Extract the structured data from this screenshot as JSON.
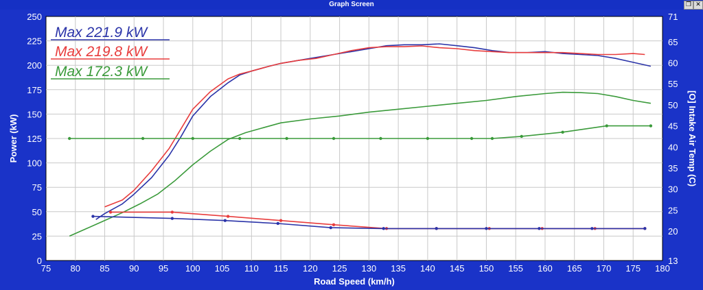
{
  "window": {
    "title": "Graph Screen",
    "restore_glyph": "❐",
    "close_glyph": "✕"
  },
  "colors": {
    "frame": "#1a33c8",
    "plot_bg": "#ffffff",
    "grid": "#c8c8c8",
    "axis_text": "#ffffff",
    "blue": "#2a33a8",
    "red": "#e83c3c",
    "green": "#3a9a3a"
  },
  "chart_data": {
    "type": "line",
    "xlabel": "Road Speed (km/h)",
    "ylabel": "Power (kW)",
    "y2label": "[O] Intake Air Temp (C)",
    "xlim": [
      75,
      180
    ],
    "ylim": [
      0,
      250
    ],
    "y2lim": [
      13,
      71
    ],
    "xticks": [
      75,
      80,
      85,
      90,
      95,
      100,
      105,
      110,
      115,
      120,
      125,
      130,
      135,
      140,
      145,
      150,
      155,
      160,
      165,
      170,
      175,
      180
    ],
    "yticks": [
      0,
      25,
      50,
      75,
      100,
      125,
      150,
      175,
      200,
      225,
      250
    ],
    "y2ticks": [
      13,
      20,
      25,
      30,
      35,
      40,
      45,
      50,
      55,
      60,
      65,
      71
    ],
    "grid": true,
    "legend": [
      "Max 221.9 kW",
      "Max 219.8 kW",
      "Max 172.3 kW"
    ],
    "series": [
      {
        "color": "blue",
        "axis": "power",
        "markers": false,
        "x": [
          83.5,
          85,
          88,
          90,
          93,
          96,
          98,
          100,
          103,
          106,
          108,
          110,
          113,
          115,
          118,
          121,
          124,
          127,
          130,
          133,
          136,
          139,
          142,
          145,
          148,
          151,
          154,
          157,
          160,
          163,
          166,
          169,
          172,
          175,
          178
        ],
        "y": [
          42,
          48,
          58,
          68,
          85,
          108,
          127,
          148,
          168,
          182,
          190,
          194,
          199,
          202,
          205,
          208,
          211,
          214,
          217,
          220,
          221,
          221,
          221.9,
          220,
          218,
          215,
          213,
          213,
          214,
          212,
          211,
          210,
          207,
          203,
          199
        ]
      },
      {
        "color": "red",
        "axis": "power",
        "markers": false,
        "x": [
          85,
          88,
          90,
          93,
          96,
          98,
          100,
          103,
          106,
          108,
          110,
          113,
          115,
          118,
          121,
          124,
          127,
          130,
          133,
          136,
          139,
          142,
          145,
          148,
          151,
          154,
          157,
          160,
          163,
          166,
          169,
          172,
          175,
          177
        ],
        "y": [
          55,
          62,
          72,
          92,
          115,
          135,
          155,
          173,
          186,
          191,
          194,
          199,
          202,
          205,
          207,
          211,
          215,
          218,
          219,
          219,
          219.8,
          218,
          217,
          215,
          214,
          213,
          213,
          213,
          213,
          212,
          211,
          211,
          212,
          211
        ]
      },
      {
        "color": "green",
        "axis": "power",
        "markers": false,
        "x": [
          79,
          82,
          85,
          88,
          91,
          94,
          97,
          100,
          103,
          106,
          109,
          112,
          115,
          120,
          125,
          130,
          135,
          140,
          145,
          150,
          155,
          160,
          163,
          166,
          169,
          172,
          175,
          178
        ],
        "y": [
          25,
          33,
          41,
          49,
          58,
          68,
          82,
          98,
          112,
          124,
          131,
          136,
          141,
          145,
          148,
          152,
          155,
          158,
          161,
          164,
          168,
          171,
          172.3,
          172,
          171,
          168,
          164,
          161
        ]
      },
      {
        "color": "green",
        "axis": "temp",
        "markers": true,
        "x": [
          79,
          91.5,
          100,
          108,
          116,
          124,
          132,
          140,
          147.5,
          151,
          156,
          163,
          170.5,
          178
        ],
        "y": [
          42,
          42,
          42,
          42,
          42,
          42,
          42,
          42,
          42,
          42,
          42.5,
          43.5,
          45,
          45
        ]
      },
      {
        "color": "red",
        "axis": "temp",
        "markers": true,
        "x": [
          86,
          96.5,
          106,
          115,
          124,
          133,
          141.5,
          150.5,
          159.5,
          168.5,
          177
        ],
        "y": [
          24.5,
          24.5,
          23.5,
          22.5,
          21.5,
          20.6,
          20.6,
          20.6,
          20.6,
          20.6,
          20.6
        ]
      },
      {
        "color": "blue",
        "axis": "temp",
        "markers": true,
        "x": [
          83,
          96.5,
          105.5,
          114.5,
          123.5,
          132.5,
          141.5,
          150,
          159,
          168,
          177
        ],
        "y": [
          23.5,
          23,
          22.5,
          21.8,
          20.8,
          20.6,
          20.6,
          20.6,
          20.6,
          20.6,
          20.6
        ]
      }
    ]
  }
}
